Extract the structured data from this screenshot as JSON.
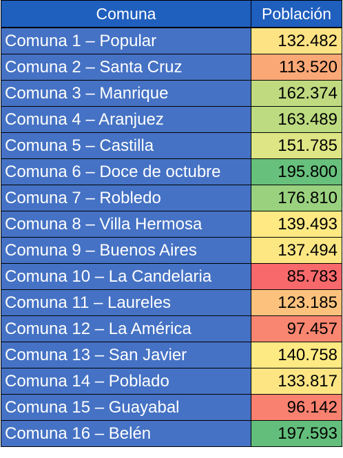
{
  "table": {
    "headers": {
      "comuna": "Comuna",
      "poblacion": "Población"
    },
    "rows": [
      {
        "comuna": "Comuna 1 – Popular",
        "poblacion": "132.482",
        "color": "#fde383"
      },
      {
        "comuna": "Comuna 2 – Santa Cruz",
        "poblacion": "113.520",
        "color": "#fba877"
      },
      {
        "comuna": "Comuna 3 – Manrique",
        "poblacion": "162.374",
        "color": "#c0da80"
      },
      {
        "comuna": "Comuna 4 – Aranjuez",
        "poblacion": "163.489",
        "color": "#bddb80"
      },
      {
        "comuna": "Comuna 5 – Castilla",
        "poblacion": "151.785",
        "color": "#dde584"
      },
      {
        "comuna": "Comuna 6 – Doce de octubre",
        "poblacion": "195.800",
        "color": "#67c07c"
      },
      {
        "comuna": "Comuna 7 – Robledo",
        "poblacion": "176.810",
        "color": "#9ad17f"
      },
      {
        "comuna": "Comuna 8 – Villa Hermosa",
        "poblacion": "139.493",
        "color": "#fee983"
      },
      {
        "comuna": "Comuna 9 – Buenos Aires",
        "poblacion": "137.494",
        "color": "#fde783"
      },
      {
        "comuna": "Comuna 10 – La Candelaria",
        "poblacion": "85.783",
        "color": "#f8696b"
      },
      {
        "comuna": "Comuna 11 – Laureles",
        "poblacion": "123.185",
        "color": "#fcc27d"
      },
      {
        "comuna": "Comuna 12 – La América",
        "poblacion": "97.457",
        "color": "#f98670"
      },
      {
        "comuna": "Comuna 13 – San Javier",
        "poblacion": "140.758",
        "color": "#feea83"
      },
      {
        "comuna": "Comuna 14 – Poblado",
        "poblacion": "133.817",
        "color": "#fde583"
      },
      {
        "comuna": "Comuna 15 – Guayabal",
        "poblacion": "96.142",
        "color": "#f98170"
      },
      {
        "comuna": "Comuna 16 – Belén",
        "poblacion": "197.593",
        "color": "#63be7b"
      }
    ]
  }
}
